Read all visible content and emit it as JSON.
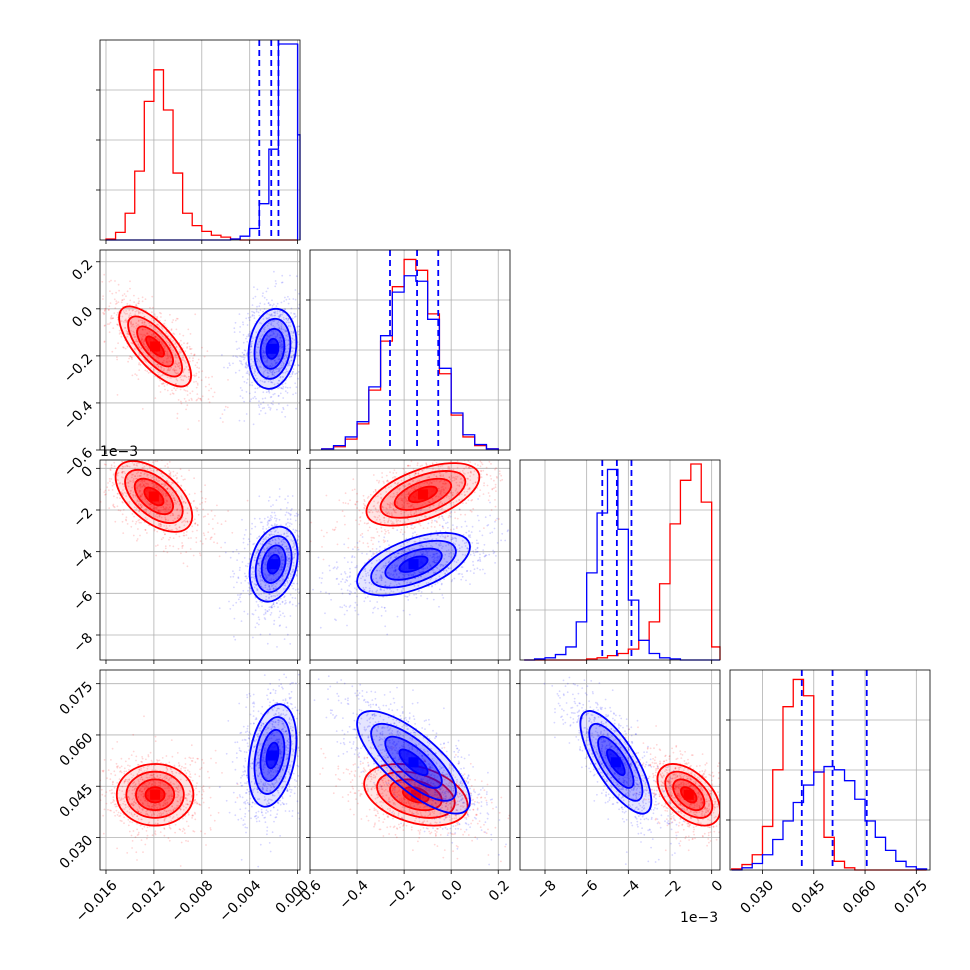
{
  "chart_data": {
    "type": "corner",
    "title": "",
    "colors": {
      "red": "#ff0000",
      "blue": "#0000ff",
      "grid": "#b0b0b0"
    },
    "grid": true,
    "series": [
      {
        "color": "#ff0000"
      },
      {
        "color": "#0000ff"
      }
    ],
    "params": [
      {
        "range": [
          -0.0165,
          0.0002
        ],
        "ticks": [
          -0.016,
          -0.012,
          -0.008,
          -0.004,
          0.0
        ],
        "tick_labels": [
          "−0.016",
          "−0.012",
          "−0.008",
          "−0.004",
          "0.000"
        ],
        "offset_label": "",
        "hist_edges": [
          -0.016,
          -0.0152,
          -0.0144,
          -0.0136,
          -0.0128,
          -0.012,
          -0.0112,
          -0.0104,
          -0.0096,
          -0.0088,
          -0.008,
          -0.0072,
          -0.0064,
          -0.0056,
          -0.0048,
          -0.004,
          -0.0032,
          -0.0024,
          -0.0016,
          -0.0008,
          0.0
        ],
        "hist_red": [
          1,
          8,
          28,
          72,
          145,
          178,
          136,
          70,
          28,
          15,
          9,
          5,
          3,
          1,
          0,
          0,
          0,
          0,
          0,
          0
        ],
        "hist_blue": [
          0,
          0,
          0,
          0,
          0,
          0,
          0,
          0,
          0,
          0,
          0,
          0,
          0,
          1,
          4,
          12,
          38,
          95,
          205,
          205
        ],
        "hist_blue_extra": [
          {
            "x": 0.0,
            "to": 0.0002,
            "v": 110
          }
        ],
        "hist_max": 205,
        "quantiles_blue": [
          -0.0032,
          -0.0022,
          -0.0016
        ]
      },
      {
        "range": [
          -0.6,
          0.25
        ],
        "ticks": [
          -0.6,
          -0.4,
          -0.2,
          0.0,
          0.2
        ],
        "tick_labels": [
          "−0.6",
          "−0.4",
          "−0.2",
          "0.0",
          "0.2"
        ],
        "offset_label": "",
        "hist_edges": [
          -0.55,
          -0.5,
          -0.45,
          -0.4,
          -0.35,
          -0.3,
          -0.25,
          -0.2,
          -0.15,
          -0.1,
          -0.05,
          0.0,
          0.05,
          0.1,
          0.15,
          0.2
        ],
        "hist_red": [
          1,
          3,
          10,
          24,
          55,
          100,
          150,
          175,
          165,
          125,
          70,
          32,
          12,
          4,
          1
        ],
        "hist_blue": [
          1,
          4,
          12,
          26,
          58,
          105,
          145,
          160,
          155,
          120,
          75,
          34,
          14,
          5,
          1
        ],
        "hist_max": 180,
        "quantiles_blue": [
          -0.26,
          -0.145,
          -0.055
        ]
      },
      {
        "range": [
          -9.2,
          0.4
        ],
        "ticks": [
          -8,
          -6,
          -4,
          -2,
          0
        ],
        "tick_labels": [
          "−8",
          "−6",
          "−4",
          "−2",
          "0"
        ],
        "offset_label": "1e−3",
        "hist_edges": [
          -9.0,
          -8.5,
          -8.0,
          -7.5,
          -7.0,
          -6.5,
          -6.0,
          -5.5,
          -5.0,
          -4.5,
          -4.0,
          -3.5,
          -3.0,
          -2.5,
          -2.0,
          -1.5,
          -1.0,
          -0.5,
          0.0,
          0.4
        ],
        "hist_red": [
          0,
          0,
          0,
          0,
          0,
          0,
          1,
          2,
          4,
          6,
          10,
          18,
          35,
          70,
          125,
          165,
          180,
          145,
          12
        ],
        "hist_blue": [
          0,
          1,
          2,
          5,
          12,
          35,
          80,
          135,
          175,
          120,
          55,
          18,
          6,
          2,
          1,
          0,
          0,
          0,
          0
        ],
        "hist_max": 180,
        "quantiles_blue": [
          -5.25,
          -4.55,
          -3.85
        ]
      },
      {
        "range": [
          0.0205,
          0.079
        ],
        "ticks": [
          0.03,
          0.045,
          0.06,
          0.075
        ],
        "tick_labels": [
          "0.030",
          "0.045",
          "0.060",
          "0.075"
        ],
        "offset_label": "",
        "hist_edges": [
          0.021,
          0.024,
          0.027,
          0.03,
          0.033,
          0.036,
          0.039,
          0.042,
          0.045,
          0.048,
          0.051,
          0.054,
          0.057,
          0.06,
          0.063,
          0.066,
          0.069,
          0.072,
          0.075,
          0.078
        ],
        "hist_red": [
          1,
          5,
          14,
          40,
          92,
          150,
          175,
          160,
          90,
          30,
          8,
          2,
          0,
          0,
          0,
          0,
          0,
          0,
          0
        ],
        "hist_blue": [
          0,
          2,
          6,
          14,
          28,
          45,
          62,
          78,
          90,
          95,
          92,
          82,
          65,
          45,
          30,
          18,
          8,
          3,
          1
        ],
        "hist_max": 180,
        "quantiles_blue": [
          0.0415,
          0.0505,
          0.0605
        ]
      }
    ],
    "pairs": [
      {
        "row": 1,
        "col": 0,
        "red": {
          "cx": -0.0119,
          "cy": -0.16,
          "sx": 0.0015,
          "sy": 0.085,
          "rho": -0.72
        },
        "blue": {
          "cx": -0.0021,
          "cy": -0.17,
          "sx": 0.001,
          "sy": 0.085,
          "rho": 0.15
        }
      },
      {
        "row": 2,
        "col": 0,
        "red": {
          "cx": -0.012,
          "cy": -1.35,
          "sx": 0.0016,
          "sy": 0.85,
          "rho": -0.55
        },
        "blue": {
          "cx": -0.002,
          "cy": -4.6,
          "sx": 0.001,
          "sy": 0.9,
          "rho": 0.25
        }
      },
      {
        "row": 2,
        "col": 1,
        "red": {
          "cx": -0.12,
          "cy": -1.25,
          "sx": 0.12,
          "sy": 0.75,
          "rho": 0.55
        },
        "blue": {
          "cx": -0.16,
          "cy": -4.6,
          "sx": 0.12,
          "sy": 0.75,
          "rho": 0.55
        }
      },
      {
        "row": 3,
        "col": 0,
        "red": {
          "cx": -0.0119,
          "cy": 0.0425,
          "sx": 0.0016,
          "sy": 0.0045,
          "rho": 0.0
        },
        "blue": {
          "cx": -0.0021,
          "cy": 0.054,
          "sx": 0.001,
          "sy": 0.0075,
          "rho": 0.3
        }
      },
      {
        "row": 3,
        "col": 1,
        "red": {
          "cx": -0.15,
          "cy": 0.0425,
          "sx": 0.11,
          "sy": 0.0045,
          "rho": -0.35
        },
        "blue": {
          "cx": -0.16,
          "cy": 0.052,
          "sx": 0.12,
          "sy": 0.0075,
          "rho": -0.75
        }
      },
      {
        "row": 3,
        "col": 2,
        "red": {
          "cx": -1.1,
          "cy": 0.0425,
          "sx": 0.75,
          "sy": 0.0045,
          "rho": -0.5
        },
        "blue": {
          "cx": -4.6,
          "cy": 0.052,
          "sx": 0.85,
          "sy": 0.0075,
          "rho": -0.75
        }
      }
    ]
  }
}
